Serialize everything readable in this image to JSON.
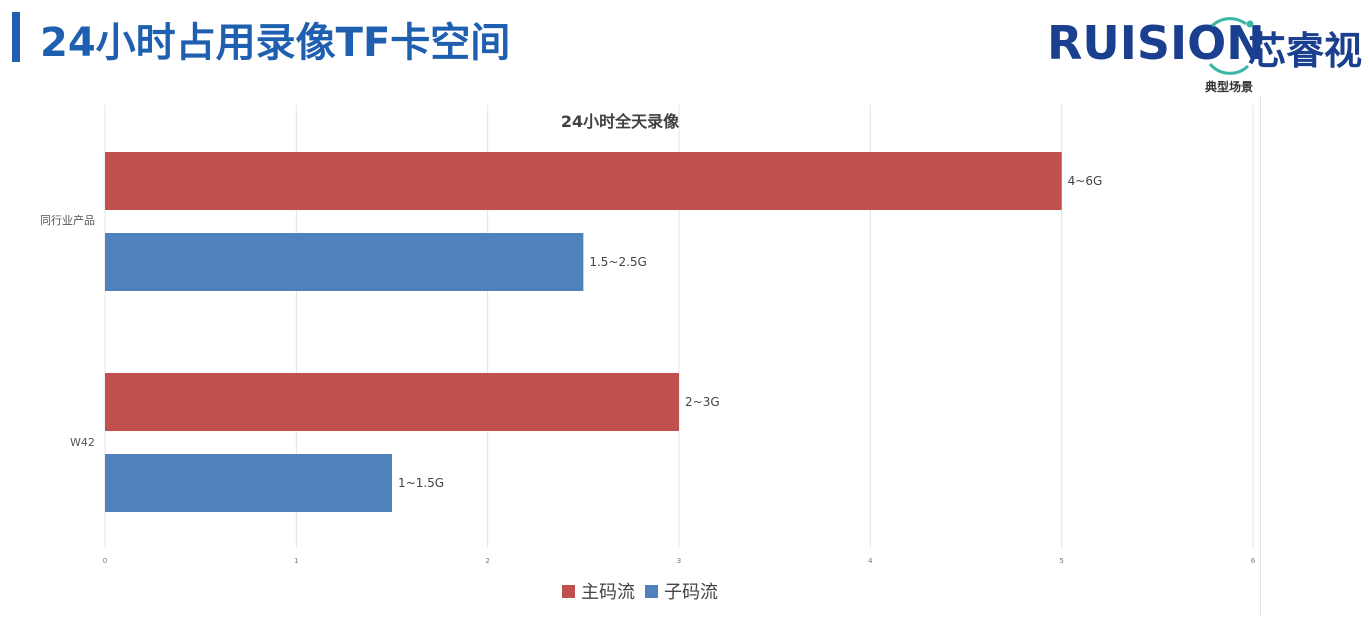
{
  "header": {
    "title": "24小时占用录像TF卡空间"
  },
  "logo": {
    "latin": "RUISION",
    "cjk": "芯睿视",
    "subtitle": "典型场景"
  },
  "colors": {
    "main_stream": "#c0504d",
    "sub_stream": "#4f81bd",
    "title_blue": "#1f5fb0",
    "logo_blue": "#1a3f8f",
    "logo_ring": "#3ab5a6"
  },
  "chart_data": {
    "type": "bar",
    "orientation": "horizontal",
    "title": "24小时全天录像",
    "categories": [
      "同行业产品",
      "W42"
    ],
    "series": [
      {
        "name": "主码流",
        "values": [
          5,
          3
        ],
        "labels": [
          "4~6G",
          "2~3G"
        ],
        "color": "#c0504d"
      },
      {
        "name": "子码流",
        "values": [
          2.5,
          1.5
        ],
        "labels": [
          "1.5~2.5G",
          "1~1.5G"
        ],
        "color": "#4f81bd"
      }
    ],
    "xlim": [
      0,
      6
    ],
    "xticks": [
      "0",
      "1",
      "2",
      "3",
      "4",
      "5",
      "6"
    ],
    "grid": true,
    "legend": "bottom"
  }
}
